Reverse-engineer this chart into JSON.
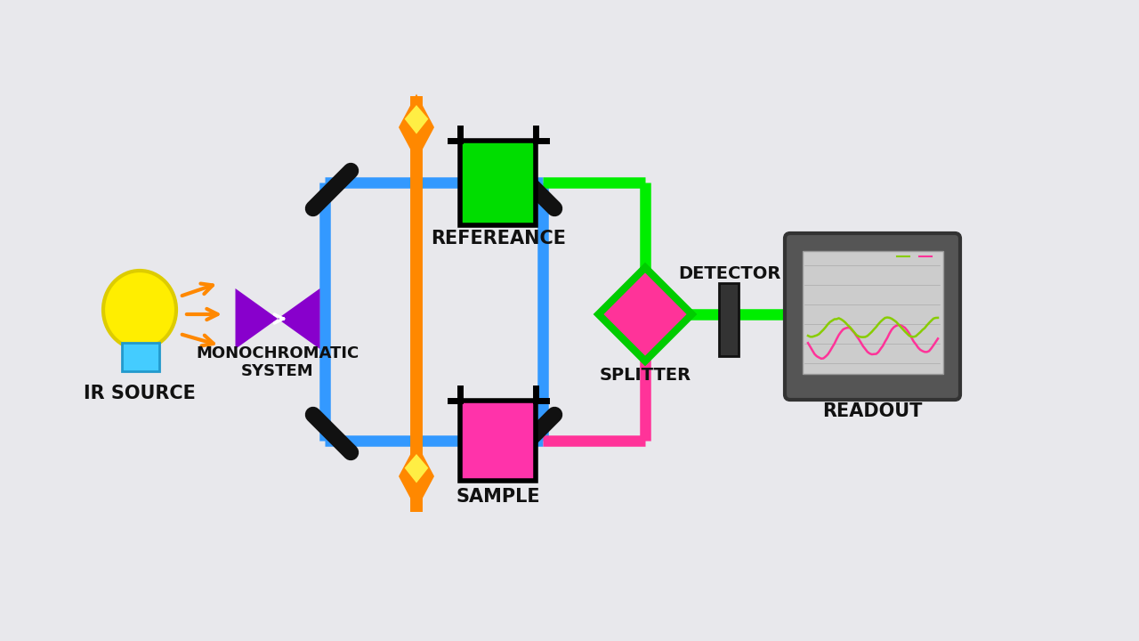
{
  "bg_color": "#e8e8ec",
  "blue_line_color": "#3399ff",
  "green_line_color": "#00ee00",
  "pink_line_color": "#ff3399",
  "orange_color": "#ff8800",
  "purple_color": "#8800cc",
  "text_color": "#111111",
  "labels": {
    "ir_source": "IR SOURCE",
    "reference": "REFEREANCE",
    "mono_system_1": "MONOCHROMATIC",
    "mono_system_2": "SYSTEM",
    "sample": "SAMPLE",
    "detector": "DETECTOR",
    "splitter": "SPLITTER",
    "readout": "READOUT"
  },
  "fontsizes": {
    "main": 15,
    "mono": 13,
    "small": 14
  }
}
